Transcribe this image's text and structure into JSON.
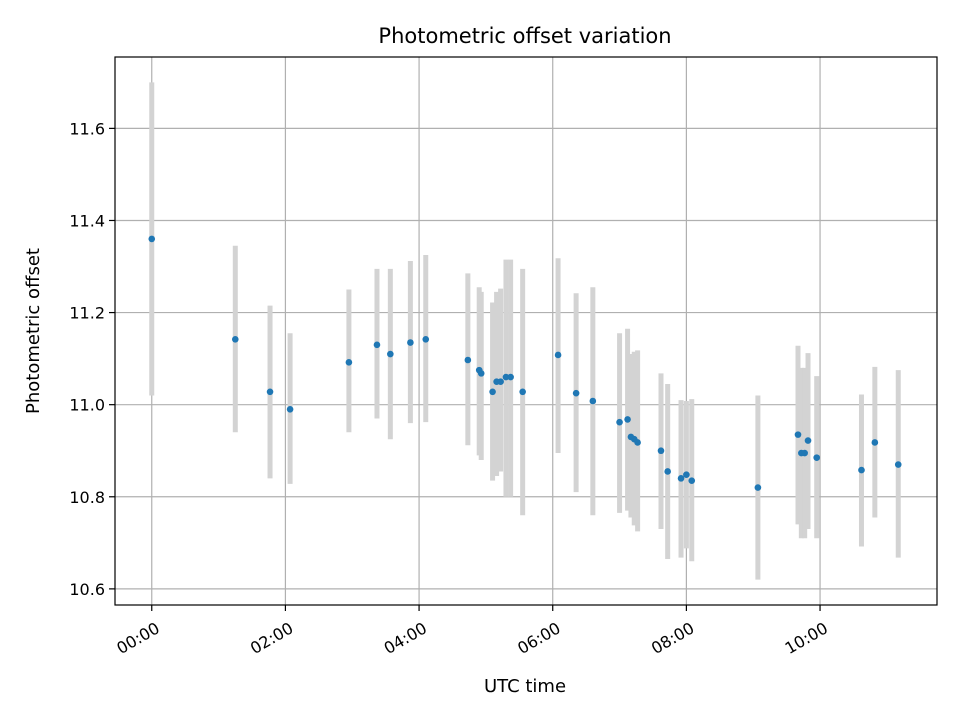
{
  "chart_data": {
    "type": "scatter",
    "title": "Photometric offset variation",
    "xlabel": "UTC time",
    "ylabel": "Photometric offset",
    "grid": true,
    "xlim_hours": [
      -0.55,
      11.75
    ],
    "ylim": [
      10.565,
      11.755
    ],
    "x_ticks": [
      {
        "hours": 0,
        "label": "00:00"
      },
      {
        "hours": 2,
        "label": "02:00"
      },
      {
        "hours": 4,
        "label": "04:00"
      },
      {
        "hours": 6,
        "label": "06:00"
      },
      {
        "hours": 8,
        "label": "08:00"
      },
      {
        "hours": 10,
        "label": "10:00"
      }
    ],
    "y_ticks": [
      {
        "value": 10.6,
        "label": "10.6"
      },
      {
        "value": 10.8,
        "label": "10.8"
      },
      {
        "value": 11.0,
        "label": "11.0"
      },
      {
        "value": 11.2,
        "label": "11.2"
      },
      {
        "value": 11.4,
        "label": "11.4"
      },
      {
        "value": 11.6,
        "label": "11.6"
      }
    ],
    "colors": {
      "point": "#1f77b4",
      "errorbar": "#d3d3d3",
      "grid": "#b0b0b0",
      "axis": "#000000"
    },
    "points": [
      {
        "t": 0.0,
        "y": 11.36,
        "lo": 11.02,
        "hi": 11.7
      },
      {
        "t": 1.25,
        "y": 11.142,
        "lo": 10.94,
        "hi": 11.345
      },
      {
        "t": 1.77,
        "y": 11.028,
        "lo": 10.84,
        "hi": 11.215
      },
      {
        "t": 2.07,
        "y": 10.99,
        "lo": 10.828,
        "hi": 11.155
      },
      {
        "t": 2.95,
        "y": 11.092,
        "lo": 10.94,
        "hi": 11.25
      },
      {
        "t": 3.37,
        "y": 11.13,
        "lo": 10.97,
        "hi": 11.295
      },
      {
        "t": 3.57,
        "y": 11.11,
        "lo": 10.925,
        "hi": 11.295
      },
      {
        "t": 3.87,
        "y": 11.135,
        "lo": 10.96,
        "hi": 11.312
      },
      {
        "t": 4.1,
        "y": 11.142,
        "lo": 10.962,
        "hi": 11.325
      },
      {
        "t": 4.73,
        "y": 11.097,
        "lo": 10.912,
        "hi": 11.285
      },
      {
        "t": 4.9,
        "y": 11.075,
        "lo": 10.89,
        "hi": 11.255
      },
      {
        "t": 4.93,
        "y": 11.068,
        "lo": 10.88,
        "hi": 11.245
      },
      {
        "t": 5.1,
        "y": 11.028,
        "lo": 10.835,
        "hi": 11.222
      },
      {
        "t": 5.16,
        "y": 11.05,
        "lo": 10.845,
        "hi": 11.245
      },
      {
        "t": 5.22,
        "y": 11.05,
        "lo": 10.855,
        "hi": 11.252
      },
      {
        "t": 5.3,
        "y": 11.06,
        "lo": 10.8,
        "hi": 11.315
      },
      {
        "t": 5.37,
        "y": 11.06,
        "lo": 10.8,
        "hi": 11.315
      },
      {
        "t": 5.55,
        "y": 11.028,
        "lo": 10.76,
        "hi": 11.295
      },
      {
        "t": 6.08,
        "y": 11.108,
        "lo": 10.895,
        "hi": 11.318
      },
      {
        "t": 6.35,
        "y": 11.025,
        "lo": 10.81,
        "hi": 11.242
      },
      {
        "t": 6.6,
        "y": 11.008,
        "lo": 10.76,
        "hi": 11.255
      },
      {
        "t": 7.0,
        "y": 10.962,
        "lo": 10.765,
        "hi": 11.155
      },
      {
        "t": 7.12,
        "y": 10.968,
        "lo": 10.77,
        "hi": 11.165
      },
      {
        "t": 7.17,
        "y": 10.93,
        "lo": 10.755,
        "hi": 11.11
      },
      {
        "t": 7.22,
        "y": 10.925,
        "lo": 10.738,
        "hi": 11.115
      },
      {
        "t": 7.27,
        "y": 10.918,
        "lo": 10.725,
        "hi": 11.118
      },
      {
        "t": 7.62,
        "y": 10.9,
        "lo": 10.73,
        "hi": 11.068
      },
      {
        "t": 7.72,
        "y": 10.855,
        "lo": 10.665,
        "hi": 11.045
      },
      {
        "t": 7.92,
        "y": 10.84,
        "lo": 10.668,
        "hi": 11.01
      },
      {
        "t": 8.0,
        "y": 10.848,
        "lo": 10.688,
        "hi": 11.008
      },
      {
        "t": 8.08,
        "y": 10.835,
        "lo": 10.66,
        "hi": 11.012
      },
      {
        "t": 9.07,
        "y": 10.82,
        "lo": 10.62,
        "hi": 11.02
      },
      {
        "t": 9.67,
        "y": 10.935,
        "lo": 10.74,
        "hi": 11.128
      },
      {
        "t": 9.72,
        "y": 10.895,
        "lo": 10.71,
        "hi": 11.08
      },
      {
        "t": 9.77,
        "y": 10.895,
        "lo": 10.71,
        "hi": 11.08
      },
      {
        "t": 9.82,
        "y": 10.922,
        "lo": 10.73,
        "hi": 11.112
      },
      {
        "t": 9.95,
        "y": 10.885,
        "lo": 10.71,
        "hi": 11.062
      },
      {
        "t": 10.62,
        "y": 10.858,
        "lo": 10.692,
        "hi": 11.022
      },
      {
        "t": 10.82,
        "y": 10.918,
        "lo": 10.755,
        "hi": 11.082
      },
      {
        "t": 11.17,
        "y": 10.87,
        "lo": 10.668,
        "hi": 11.075
      }
    ]
  }
}
